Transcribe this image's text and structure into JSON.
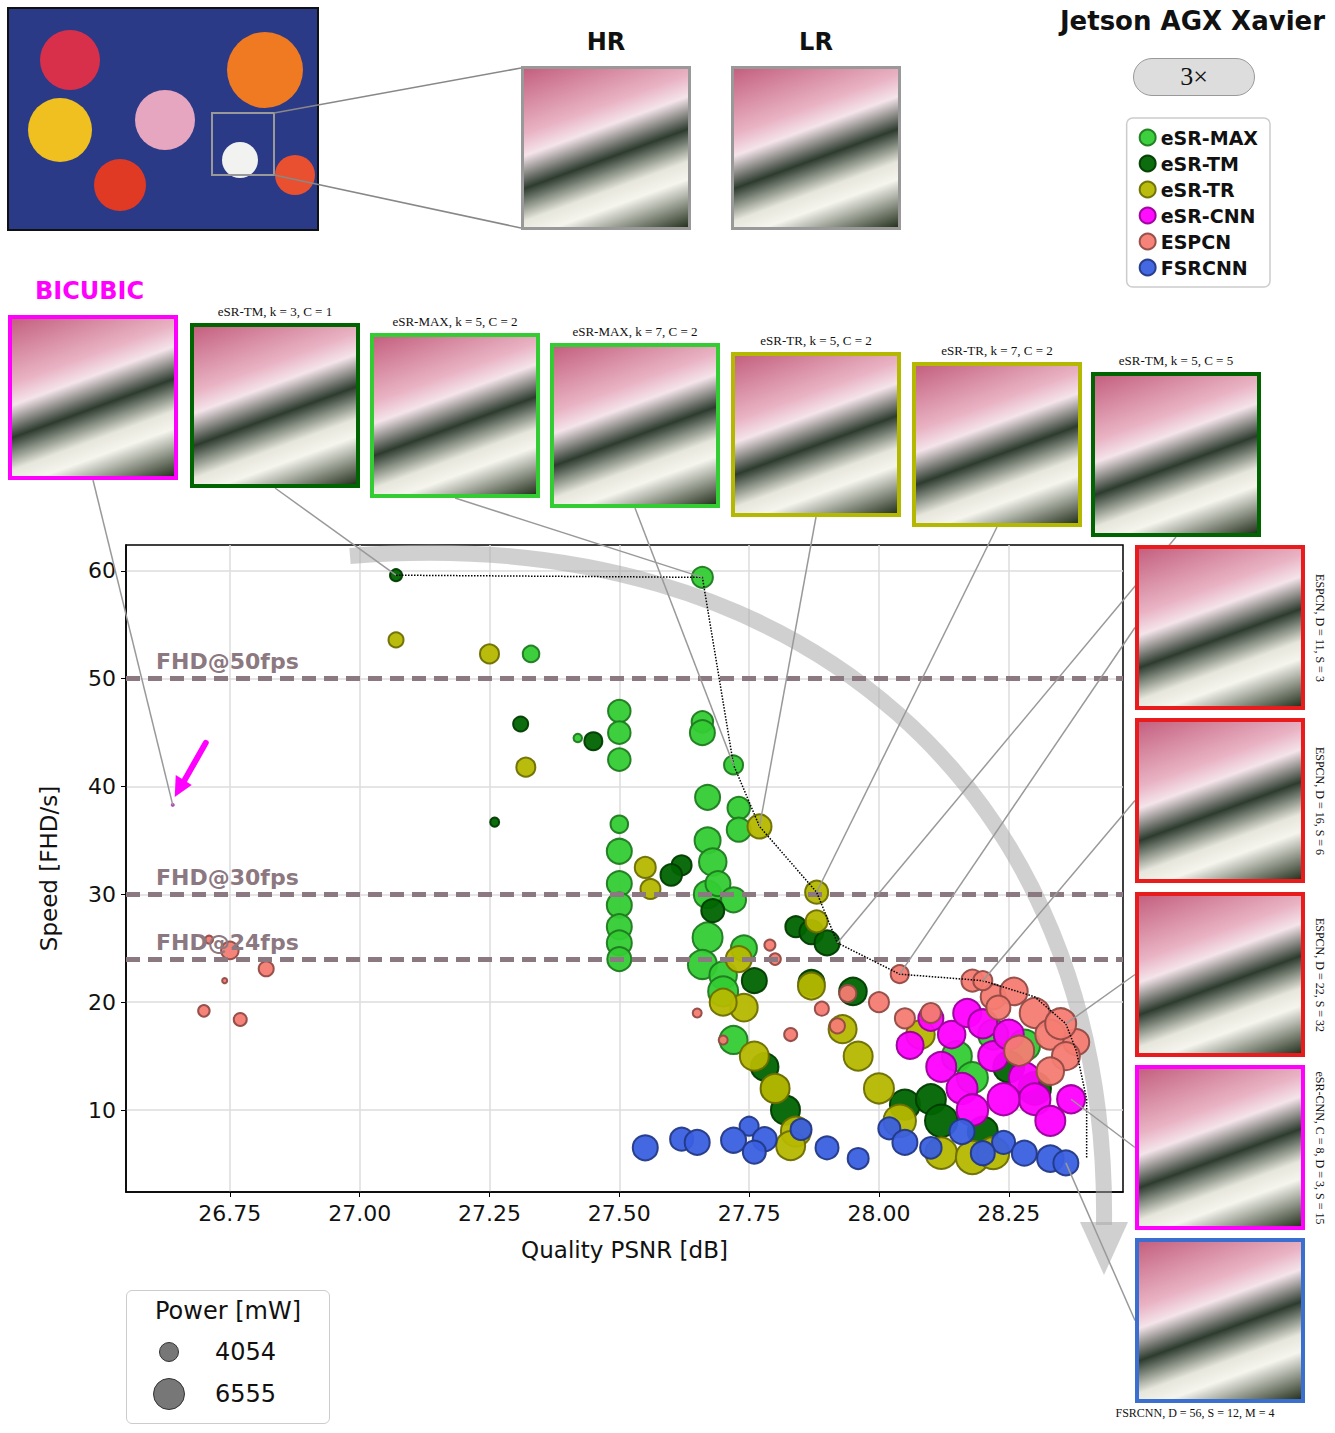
{
  "title": "Jetson AGX Xavier",
  "scale_label": "3×",
  "crop_labels": [
    "HR",
    "LR"
  ],
  "chart_data": {
    "type": "scatter",
    "xlabel": "Quality PSNR [dB]",
    "ylabel": "Speed [FHD/s]",
    "xlim": [
      26.55,
      28.47
    ],
    "ylim": [
      2.4,
      62.4
    ],
    "xticks": [
      26.75,
      {
        "value": 27,
        "label": "27.00"
      },
      27.25,
      {
        "value": 27.5,
        "label": "27.50"
      },
      27.75,
      {
        "value": 28,
        "label": "28.00"
      },
      28.25
    ],
    "yticks": [
      10,
      20,
      30,
      40,
      50,
      60
    ],
    "grid": true,
    "legend": "top-right",
    "series": [
      {
        "name": "eSR-MAX",
        "color": "#33cc33",
        "x": [
          27.66,
          27.5,
          27.5,
          27.5,
          27.5,
          27.5,
          27.5,
          27.5,
          27.5,
          27.5,
          27.5,
          27.66,
          27.66,
          27.67,
          27.67,
          27.68,
          27.67,
          27.67,
          27.66,
          27.7,
          27.72,
          27.73,
          27.73,
          27.69,
          27.72,
          27.74,
          27.72,
          27.7,
          27.42,
          27.33,
          28.15,
          28.22,
          28.28,
          28.18
        ],
        "values": [
          59.4,
          47,
          45,
          42.5,
          36.5,
          34,
          31,
          29,
          27,
          25.5,
          24,
          46,
          45,
          39,
          35,
          33,
          30,
          26,
          23.5,
          22.5,
          42,
          38,
          36,
          31,
          29.5,
          25,
          16.5,
          21,
          44.5,
          52.3,
          15,
          17,
          16,
          13
        ],
        "power": [
          4200,
          4500,
          4500,
          4500,
          3500,
          5000,
          5000,
          5000,
          5000,
          5000,
          4800,
          4300,
          5000,
          5000,
          5200,
          5500,
          5500,
          6000,
          5800,
          5500,
          3800,
          4500,
          4800,
          5000,
          5000,
          5200,
          5600,
          6000,
          1700,
          3300,
          6000,
          6000,
          6300,
          6200
        ]
      },
      {
        "name": "eSR-TM",
        "color": "#006400",
        "x": [
          27.07,
          27.31,
          27.45,
          27.26,
          27.84,
          27.87,
          27.9,
          27.68,
          27.62,
          27.6,
          27.76,
          27.78,
          27.8,
          27.82,
          28.05,
          28.1,
          28.12,
          28.2,
          28.25,
          28.3,
          27.95,
          27.87
        ],
        "values": [
          59.6,
          45.8,
          44.2,
          36.7,
          27,
          26.5,
          25.5,
          28.5,
          32.7,
          31.8,
          22,
          14,
          12,
          10,
          10.5,
          11,
          9,
          8,
          14,
          12,
          21,
          21.8
        ],
        "power": [
          2400,
          3000,
          3600,
          1800,
          4200,
          4800,
          5000,
          4600,
          4000,
          4300,
          5000,
          5500,
          5600,
          5800,
          6000,
          6000,
          6500,
          6000,
          6200,
          6500,
          5500,
          5200
        ]
      },
      {
        "name": "eSR-TR",
        "color": "#b5b800",
        "x": [
          27.07,
          27.25,
          27.32,
          27.55,
          27.56,
          27.77,
          27.88,
          27.88,
          27.74,
          27.76,
          27.8,
          27.84,
          27.83,
          27.87,
          27.93,
          27.96,
          28.0,
          28.04,
          28.12,
          28.18,
          28.22,
          27.73,
          27.7,
          28.08
        ],
        "values": [
          53.6,
          52.3,
          41.8,
          32.5,
          30.5,
          36.3,
          30.2,
          27.5,
          19.5,
          15,
          12,
          8,
          6.7,
          21.5,
          17.5,
          15,
          12,
          9,
          6,
          5.6,
          6,
          24,
          20,
          17
        ],
        "power": [
          3000,
          3800,
          3800,
          4200,
          4000,
          4800,
          4600,
          4400,
          5500,
          5800,
          5800,
          6000,
          5800,
          5400,
          5600,
          5800,
          6000,
          6500,
          6300,
          6600,
          6400,
          5200,
          5400,
          5700
        ]
      },
      {
        "name": "eSR-CNN",
        "color": "#ff00ff",
        "x": [
          28.1,
          28.14,
          28.17,
          28.2,
          28.12,
          28.16,
          28.22,
          28.25,
          28.28,
          28.3,
          28.33,
          28.37,
          28.18,
          28.24,
          28.06
        ],
        "values": [
          18.5,
          17,
          19,
          18,
          14,
          12,
          15,
          17,
          13,
          11,
          9,
          11,
          10,
          11,
          16
        ],
        "power": [
          5000,
          5500,
          5600,
          5800,
          6000,
          6200,
          6000,
          6000,
          6200,
          6300,
          6000,
          5600,
          6300,
          6400,
          5400
        ]
      },
      {
        "name": "ESPCN",
        "color": "#f47c72",
        "x": [
          26.71,
          26.75,
          26.74,
          26.82,
          26.7,
          26.77,
          27.65,
          27.7,
          27.79,
          27.8,
          27.83,
          27.89,
          27.92,
          27.94,
          28.04,
          28.0,
          28.05,
          28.18,
          28.22,
          28.26,
          28.2,
          28.3,
          28.33,
          28.38,
          28.36,
          28.27,
          28.33,
          28.35,
          28.23,
          28.1
        ],
        "values": [
          25.8,
          24.8,
          22,
          23.1,
          19.2,
          18.4,
          19,
          16.5,
          25.3,
          24,
          17,
          19.4,
          17.8,
          20.8,
          22.6,
          20,
          18.5,
          22,
          20.5,
          21,
          22,
          19,
          17,
          16.3,
          15,
          15.5,
          13.6,
          18,
          19.5,
          19
        ],
        "power": [
          1600,
          3500,
          1000,
          3000,
          2300,
          2600,
          1800,
          1800,
          2200,
          2300,
          2600,
          2800,
          3000,
          3400,
          3600,
          4000,
          4000,
          4400,
          5000,
          5500,
          3800,
          6000,
          6000,
          5200,
          5600,
          6000,
          5500,
          6200,
          4800,
          4000
        ]
      },
      {
        "name": "FSRCNN",
        "color": "#3a5fe0",
        "x": [
          27.55,
          27.62,
          27.65,
          27.75,
          27.72,
          27.78,
          27.76,
          27.85,
          27.9,
          27.96,
          28.02,
          28.05,
          28.16,
          28.24,
          28.28,
          28.33,
          28.36,
          28.1,
          28.2
        ],
        "values": [
          6.5,
          7.3,
          7,
          8.5,
          7.2,
          7.3,
          6.1,
          8.2,
          6.5,
          5.5,
          8.3,
          7,
          8,
          7,
          6,
          5.5,
          5.1,
          6.5,
          6
        ],
        "power": [
          5000,
          4600,
          5000,
          3800,
          5000,
          4800,
          4600,
          4200,
          4600,
          4200,
          4400,
          5000,
          5000,
          4600,
          5000,
          5300,
          5000,
          4300,
          4800
        ]
      }
    ],
    "baseline": {
      "name": "BICUBIC",
      "color": "#a020a0",
      "x": 26.64,
      "value": 38.3,
      "power": 800
    },
    "pareto_front": {
      "x": [
        27.07,
        27.66,
        27.72,
        27.77,
        27.88,
        27.92,
        28.04,
        28.2,
        28.3,
        28.36,
        28.38,
        28.4,
        28.4
      ],
      "values": [
        59.6,
        59.4,
        42,
        36.3,
        30.2,
        25.5,
        22.6,
        22,
        20.5,
        18,
        15.5,
        11,
        5.5
      ]
    },
    "reference_lines": [
      {
        "value": 50,
        "label": "FHD@50fps"
      },
      {
        "value": 30,
        "label": "FHD@30fps"
      },
      {
        "value": 24,
        "label": "FHD@24fps"
      }
    ],
    "size_legend": {
      "title": "Power [mW]",
      "values": [
        4054,
        6555
      ]
    }
  },
  "thumbnails_top": [
    {
      "caption": "BICUBIC",
      "color": "#ff00ff",
      "point": [
        26.64,
        38.3
      ]
    },
    {
      "caption": "eSR-TM, k = 3, C = 1",
      "color": "#006400",
      "point": [
        27.07,
        59.6
      ]
    },
    {
      "caption": "eSR-MAX, k = 5, C = 2",
      "color": "#33cc33",
      "point": [
        27.66,
        59.4
      ]
    },
    {
      "caption": "eSR-MAX, k = 7, C = 2",
      "color": "#33cc33",
      "point": [
        27.72,
        42
      ]
    },
    {
      "caption": "eSR-TR, k = 5, C = 2",
      "color": "#b5b800",
      "point": [
        27.77,
        36.3
      ]
    },
    {
      "caption": "eSR-TR, k = 7, C = 2",
      "color": "#b5b800",
      "point": [
        27.88,
        30.2
      ]
    },
    {
      "caption": "eSR-TM, k = 5, C = 5",
      "color": "#006400",
      "point": [
        27.92,
        25.5
      ]
    }
  ],
  "thumbnails_right": [
    {
      "caption": "ESPCN, D = 11, S = 3",
      "color": "#e81c1c",
      "point": [
        28.04,
        22.6
      ]
    },
    {
      "caption": "ESPCN, D = 16, S = 6",
      "color": "#e81c1c",
      "point": [
        28.2,
        22
      ]
    },
    {
      "caption": "ESPCN, D = 22, S = 32",
      "color": "#e81c1c",
      "point": [
        28.36,
        18
      ]
    },
    {
      "caption": "eSR-CNN, C = 8, D = 3, S = 15",
      "color": "#ff00ff",
      "point": [
        28.37,
        11
      ]
    },
    {
      "caption": "FSRCNN, D = 56, S = 12, M = 4",
      "color": "#3a6fd0",
      "point": [
        28.36,
        5.1
      ]
    }
  ]
}
